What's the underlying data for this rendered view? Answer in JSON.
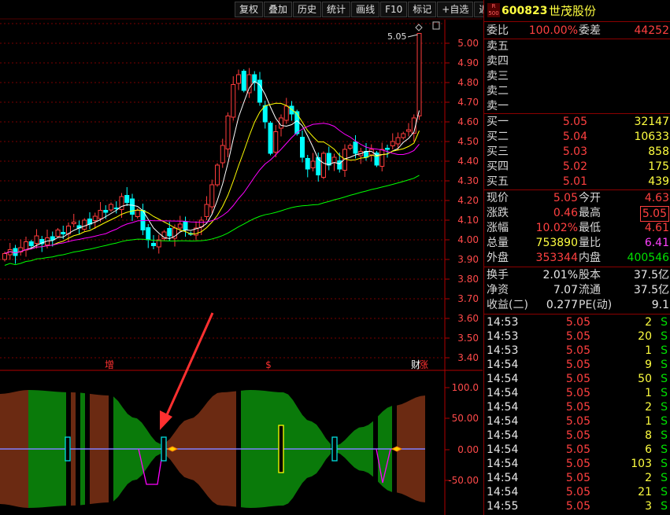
{
  "toolbar": [
    "复权",
    "叠加",
    "历史",
    "统计",
    "画线",
    "F10",
    "标记",
    "+自选",
    "返回"
  ],
  "stock": {
    "badge_top": "R",
    "badge_bottom": "500",
    "code": "600823",
    "name": "世茂股份"
  },
  "main_chart": {
    "y_ticks": [
      "5.00",
      "4.90",
      "4.80",
      "4.70",
      "4.60",
      "4.50",
      "4.40",
      "4.30",
      "4.20",
      "4.10",
      "4.00",
      "3.90",
      "3.80",
      "3.70",
      "3.60",
      "3.50",
      "3.40"
    ],
    "last_price_callout": "5.05",
    "markers": [
      "增",
      "$",
      "财",
      "涨"
    ]
  },
  "indicator": {
    "y_ticks": [
      "100.0",
      "50.00",
      "0.00",
      "-50.00"
    ]
  },
  "colors": {
    "up": "#ff3c3c",
    "down": "#00ffff",
    "ma5": "#ffffff",
    "ma10": "#ffff00",
    "ma20": "#ff00ff",
    "ma60": "#00ff00",
    "grid": "#7a0000",
    "arrow": "#ff3030"
  },
  "panel": {
    "weibi": {
      "label": "委比",
      "value": "100.00%",
      "label2": "委差",
      "value2": "44252"
    },
    "sells": [
      {
        "label": "卖五"
      },
      {
        "label": "卖四"
      },
      {
        "label": "卖三"
      },
      {
        "label": "卖二"
      },
      {
        "label": "卖一"
      }
    ],
    "buys": [
      {
        "label": "买一",
        "price": "5.05",
        "vol": "32147"
      },
      {
        "label": "买二",
        "price": "5.04",
        "vol": "10633"
      },
      {
        "label": "买三",
        "price": "5.03",
        "vol": "858"
      },
      {
        "label": "买四",
        "price": "5.02",
        "vol": "175"
      },
      {
        "label": "买五",
        "price": "5.01",
        "vol": "439"
      }
    ],
    "quote": [
      {
        "l1": "现价",
        "v1": "5.05",
        "l2": "今开",
        "v2": "4.63"
      },
      {
        "l1": "涨跌",
        "v1": "0.46",
        "l2": "最高",
        "v2": "5.05"
      },
      {
        "l1": "涨幅",
        "v1": "10.02%",
        "l2": "最低",
        "v2": "4.61"
      },
      {
        "l1": "总量",
        "v1": "753890",
        "l2": "量比",
        "v2": "6.41"
      },
      {
        "l1": "外盘",
        "v1": "353344",
        "l2": "内盘",
        "v2": "400546"
      }
    ],
    "fin": [
      {
        "l1": "换手",
        "v1": "2.01%",
        "l2": "股本",
        "v2": "37.5亿"
      },
      {
        "l1": "净资",
        "v1": "7.07",
        "l2": "流通",
        "v2": "37.5亿"
      },
      {
        "l1": "收益(二)",
        "v1": "0.277",
        "l2": "PE(动)",
        "v2": "9.1"
      }
    ],
    "ticks": [
      {
        "t": "14:53",
        "p": "5.05",
        "v": "2",
        "s": "S"
      },
      {
        "t": "14:53",
        "p": "5.05",
        "v": "20",
        "s": "S"
      },
      {
        "t": "14:53",
        "p": "5.05",
        "v": "1",
        "s": "S"
      },
      {
        "t": "14:54",
        "p": "5.05",
        "v": "9",
        "s": "S"
      },
      {
        "t": "14:54",
        "p": "5.05",
        "v": "50",
        "s": "S"
      },
      {
        "t": "14:54",
        "p": "5.05",
        "v": "1",
        "s": "S"
      },
      {
        "t": "14:54",
        "p": "5.05",
        "v": "2",
        "s": "S"
      },
      {
        "t": "14:54",
        "p": "5.05",
        "v": "1",
        "s": "S"
      },
      {
        "t": "14:54",
        "p": "5.05",
        "v": "8",
        "s": "S"
      },
      {
        "t": "14:54",
        "p": "5.05",
        "v": "6",
        "s": "S"
      },
      {
        "t": "14:54",
        "p": "5.05",
        "v": "103",
        "s": "S"
      },
      {
        "t": "14:54",
        "p": "5.05",
        "v": "2",
        "s": "S"
      },
      {
        "t": "14:54",
        "p": "5.05",
        "v": "21",
        "s": "S"
      },
      {
        "t": "14:55",
        "p": "5.05",
        "v": "3",
        "s": "S"
      }
    ]
  }
}
